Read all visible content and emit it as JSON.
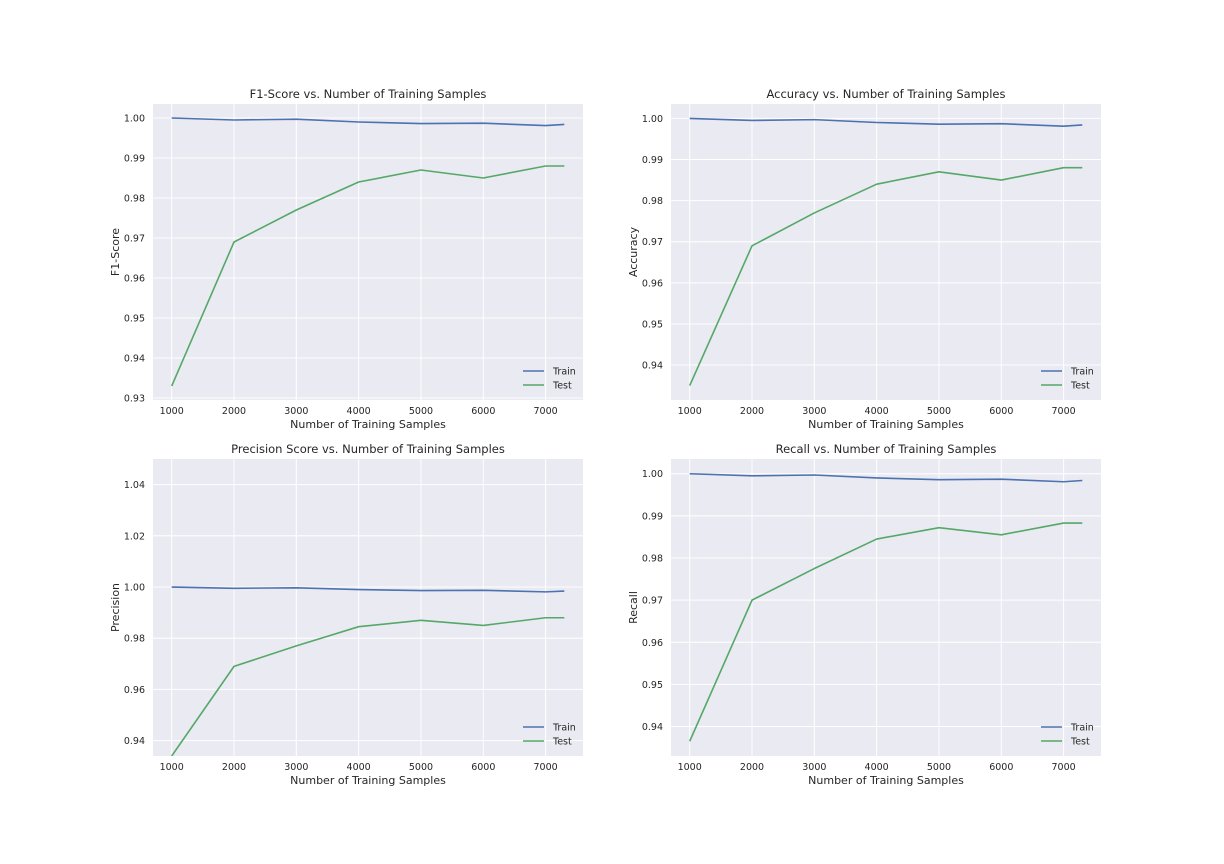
{
  "colors": {
    "train": "#4c72b0",
    "test": "#55a868",
    "axes_bg": "#eaeaf2",
    "grid": "#ffffff"
  },
  "legend_labels": {
    "train": "Train",
    "test": "Test"
  },
  "chart_data": [
    {
      "type": "line",
      "title": "F1-Score vs. Number of Training Samples",
      "xlabel": "Number of Training Samples",
      "ylabel": "F1-Score",
      "x": [
        1000,
        2000,
        3000,
        4000,
        5000,
        6000,
        7000,
        7300
      ],
      "xlim": [
        700,
        7600
      ],
      "ylim": [
        0.9295,
        1.0035
      ],
      "xticks": [
        1000,
        2000,
        3000,
        4000,
        5000,
        6000,
        7000
      ],
      "yticks": [
        0.93,
        0.94,
        0.95,
        0.96,
        0.97,
        0.98,
        0.99,
        1.0
      ],
      "ytick_labels": [
        "0.93",
        "0.94",
        "0.95",
        "0.96",
        "0.97",
        "0.98",
        "0.99",
        "1.00"
      ],
      "series": [
        {
          "name": "Train",
          "values": [
            1.0,
            0.9995,
            0.9997,
            0.999,
            0.9986,
            0.9987,
            0.9981,
            0.9984
          ]
        },
        {
          "name": "Test",
          "values": [
            0.933,
            0.969,
            0.977,
            0.984,
            0.987,
            0.985,
            0.988,
            0.988
          ]
        }
      ],
      "legend": "lower-right",
      "grid": true
    },
    {
      "type": "line",
      "title": "Accuracy vs. Number of Training Samples",
      "xlabel": "Number of Training Samples",
      "ylabel": "Accuracy",
      "x": [
        1000,
        2000,
        3000,
        4000,
        5000,
        6000,
        7000,
        7300
      ],
      "xlim": [
        700,
        7600
      ],
      "ylim": [
        0.9315,
        1.0035
      ],
      "xticks": [
        1000,
        2000,
        3000,
        4000,
        5000,
        6000,
        7000
      ],
      "yticks": [
        0.94,
        0.95,
        0.96,
        0.97,
        0.98,
        0.99,
        1.0
      ],
      "ytick_labels": [
        "0.94",
        "0.95",
        "0.96",
        "0.97",
        "0.98",
        "0.99",
        "1.00"
      ],
      "series": [
        {
          "name": "Train",
          "values": [
            1.0,
            0.9995,
            0.9997,
            0.999,
            0.9986,
            0.9987,
            0.9981,
            0.9984
          ]
        },
        {
          "name": "Test",
          "values": [
            0.935,
            0.969,
            0.977,
            0.984,
            0.987,
            0.985,
            0.988,
            0.988
          ]
        }
      ],
      "legend": "lower-right",
      "grid": true
    },
    {
      "type": "line",
      "title": "Precision Score vs. Number of Training Samples",
      "xlabel": "Number of Training Samples",
      "ylabel": "Precision",
      "x": [
        1000,
        2000,
        3000,
        4000,
        5000,
        6000,
        7000,
        7300
      ],
      "xlim": [
        700,
        7600
      ],
      "ylim": [
        0.934,
        1.05
      ],
      "xticks": [
        1000,
        2000,
        3000,
        4000,
        5000,
        6000,
        7000
      ],
      "yticks": [
        0.94,
        0.96,
        0.98,
        1.0,
        1.02,
        1.04
      ],
      "ytick_labels": [
        "0.94",
        "0.96",
        "0.98",
        "1.00",
        "1.02",
        "1.04"
      ],
      "series": [
        {
          "name": "Train",
          "values": [
            1.0,
            0.9995,
            0.9997,
            0.999,
            0.9986,
            0.9987,
            0.9981,
            0.9984
          ]
        },
        {
          "name": "Test",
          "values": [
            0.934,
            0.969,
            0.977,
            0.9845,
            0.987,
            0.985,
            0.988,
            0.988
          ]
        }
      ],
      "legend": "lower-right",
      "grid": true
    },
    {
      "type": "line",
      "title": "Recall vs. Number of Training Samples",
      "xlabel": "Number of Training Samples",
      "ylabel": "Recall",
      "x": [
        1000,
        2000,
        3000,
        4000,
        5000,
        6000,
        7000,
        7300
      ],
      "xlim": [
        700,
        7600
      ],
      "ylim": [
        0.933,
        1.0035
      ],
      "xticks": [
        1000,
        2000,
        3000,
        4000,
        5000,
        6000,
        7000
      ],
      "yticks": [
        0.94,
        0.95,
        0.96,
        0.97,
        0.98,
        0.99,
        1.0
      ],
      "ytick_labels": [
        "0.94",
        "0.95",
        "0.96",
        "0.97",
        "0.98",
        "0.99",
        "1.00"
      ],
      "series": [
        {
          "name": "Train",
          "values": [
            1.0,
            0.9995,
            0.9997,
            0.999,
            0.9986,
            0.9987,
            0.9981,
            0.9984
          ]
        },
        {
          "name": "Test",
          "values": [
            0.9365,
            0.97,
            0.9775,
            0.9845,
            0.9872,
            0.9855,
            0.9883,
            0.9883
          ]
        }
      ],
      "legend": "lower-right",
      "grid": true
    }
  ]
}
